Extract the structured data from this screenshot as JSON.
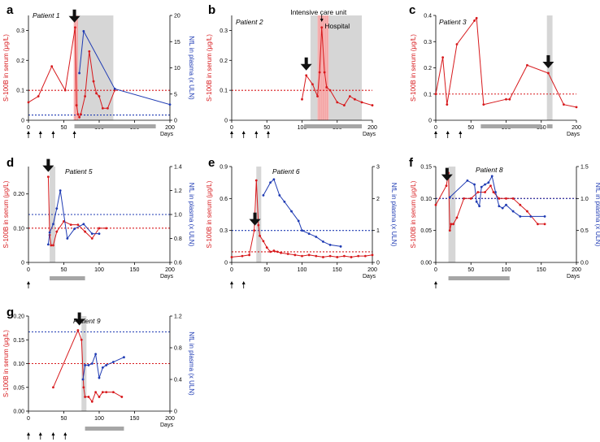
{
  "chart_data": [
    {
      "id": "a",
      "panel_label": "a",
      "patient": "Patient 1",
      "type": "line",
      "x_label": "Days",
      "y_label": "S-100B in serum (μg/L)",
      "y2_label": "NfL in plasma (x ULN)",
      "x_ticks": [
        0,
        50,
        100,
        150,
        200
      ],
      "y_ticks": [
        0,
        0.1,
        0.2,
        0.3
      ],
      "y_tick_labels": [
        "0",
        "0.1",
        "0.2",
        "0.3"
      ],
      "y2_ticks": [
        0,
        5,
        10,
        15,
        20
      ],
      "y2_tick_labels": [
        "0",
        "5",
        "10",
        "15",
        "20"
      ],
      "xlim": [
        0,
        200
      ],
      "ylim": [
        0,
        0.35
      ],
      "y2lim": [
        0,
        20
      ],
      "series": [
        {
          "name": "S-100B",
          "axis": "left",
          "color": "#d7191c",
          "x": [
            0,
            14,
            33,
            52,
            66,
            68,
            70,
            72,
            74,
            80,
            86,
            92,
            96,
            100,
            105,
            112,
            122
          ],
          "y": [
            0.06,
            0.08,
            0.18,
            0.1,
            0.31,
            0.05,
            0.02,
            0.01,
            0.02,
            0.08,
            0.23,
            0.13,
            0.09,
            0.08,
            0.04,
            0.04,
            0.1
          ]
        },
        {
          "name": "NfL",
          "axis": "right",
          "color": "#1f3bb3",
          "x": [
            72,
            78,
            122,
            200
          ],
          "y": [
            9,
            17,
            6,
            3
          ]
        }
      ],
      "ref_left": 0.1,
      "ref_right": 1,
      "shade": [
        [
          66,
          120
        ]
      ],
      "pink": [
        [
          64,
          70
        ]
      ],
      "bar": [
        [
          65,
          180
        ]
      ],
      "arrow_days": [
        65
      ],
      "tick_arrows": [
        0,
        17,
        35,
        65
      ]
    },
    {
      "id": "b",
      "panel_label": "b",
      "patient": "Patient 2",
      "type": "line",
      "x_label": "Days",
      "y_label": "S-100B in serum (μg/L)",
      "x_ticks": [
        0,
        50,
        100,
        150,
        200
      ],
      "y_ticks": [
        0,
        0.1,
        0.2,
        0.3
      ],
      "y_tick_labels": [
        "0",
        "0.1",
        "0.2",
        "0.3"
      ],
      "xlim": [
        0,
        200
      ],
      "ylim": [
        0,
        0.35
      ],
      "series": [
        {
          "name": "S-100B",
          "axis": "left",
          "color": "#d7191c",
          "x": [
            100,
            106,
            115,
            122,
            125,
            128,
            132,
            135,
            140,
            150,
            160,
            168,
            175,
            185,
            200
          ],
          "y": [
            0.07,
            0.15,
            0.12,
            0.08,
            0.16,
            0.31,
            0.16,
            0.11,
            0.1,
            0.06,
            0.05,
            0.08,
            0.07,
            0.06,
            0.05
          ]
        }
      ],
      "ref_left": 0.1,
      "shade": [
        [
          112,
          185
        ]
      ],
      "pink": [
        [
          122,
          138
        ]
      ],
      "bar": [
        [
          103,
          185
        ]
      ],
      "arrow_days": [
        106,
        128
      ],
      "tick_arrows": [
        0,
        17,
        35,
        52
      ],
      "annotations": [
        "Intensive care unit",
        "Hospital"
      ]
    },
    {
      "id": "c",
      "panel_label": "c",
      "patient": "Patient 3",
      "type": "line",
      "x_label": "Days",
      "y_label": "S-100B in serum (μg/L)",
      "x_ticks": [
        0,
        50,
        100,
        150,
        200
      ],
      "y_ticks": [
        0,
        0.1,
        0.2,
        0.3,
        0.4
      ],
      "y_tick_labels": [
        "0",
        "0.1",
        "0.2",
        "0.3",
        "0.4"
      ],
      "xlim": [
        0,
        200
      ],
      "ylim": [
        0,
        0.4
      ],
      "series": [
        {
          "name": "S-100B",
          "axis": "left",
          "color": "#d7191c",
          "x": [
            0,
            10,
            16,
            30,
            55,
            58,
            68,
            100,
            105,
            130,
            160,
            182,
            200
          ],
          "y": [
            0.1,
            0.24,
            0.06,
            0.29,
            0.38,
            0.39,
            0.06,
            0.08,
            0.08,
            0.21,
            0.18,
            0.06,
            0.05
          ]
        }
      ],
      "ref_left": 0.1,
      "shade": [
        [
          158,
          166
        ]
      ],
      "bar": [
        [
          64,
          150
        ],
        [
          158,
          166
        ]
      ],
      "arrow_days": [
        160
      ],
      "tick_arrows": [
        0,
        17,
        35
      ]
    },
    {
      "id": "d",
      "panel_label": "d",
      "patient": "Patient 5",
      "type": "line",
      "x_label": "Days",
      "y_label": "S-100B in serum (μg/L)",
      "y2_label": "NfL in plasma (x ULN)",
      "x_ticks": [
        0,
        50,
        100,
        150,
        200
      ],
      "y_ticks": [
        0,
        0.1,
        0.2
      ],
      "y_tick_labels": [
        "0",
        "0.10",
        "0.20"
      ],
      "y2_ticks": [
        0.6,
        0.8,
        1,
        1.2,
        1.4
      ],
      "y2_tick_labels": [
        "0.6",
        "0.8",
        "1.0",
        "1.2",
        "1.4"
      ],
      "xlim": [
        0,
        200
      ],
      "ylim": [
        0,
        0.28
      ],
      "y2lim": [
        0.6,
        1.4
      ],
      "series": [
        {
          "name": "S-100B",
          "axis": "left",
          "color": "#d7191c",
          "x": [
            28,
            30,
            32,
            35,
            40,
            50,
            60,
            70,
            80,
            90,
            100,
            110
          ],
          "y": [
            0.25,
            0.08,
            0.05,
            0.05,
            0.09,
            0.12,
            0.11,
            0.11,
            0.09,
            0.07,
            0.1,
            0.1
          ]
        },
        {
          "name": "NfL",
          "axis": "right",
          "color": "#1f3bb3",
          "x": [
            28,
            30,
            35,
            40,
            45,
            55,
            65,
            78,
            90,
            100
          ],
          "y": [
            0.75,
            0.85,
            0.92,
            1.05,
            1.2,
            0.8,
            0.88,
            0.92,
            0.84,
            0.84
          ]
        }
      ],
      "ref_left": 0.1,
      "ref_right": 1,
      "shade": [
        [
          30,
          38
        ]
      ],
      "bar": [
        [
          30,
          80
        ]
      ],
      "arrow_days": [
        28
      ],
      "tick_arrows": [
        0
      ]
    },
    {
      "id": "e",
      "panel_label": "e",
      "patient": "Patient 6",
      "type": "line",
      "x_label": "Days",
      "y_label": "S-100B in serum (μg/L)",
      "y2_label": "NfL in plasma (x ULN)",
      "x_ticks": [
        0,
        50,
        100,
        150,
        200
      ],
      "y_ticks": [
        0,
        0.3,
        0.6,
        0.9
      ],
      "y_tick_labels": [
        "0",
        "0.3",
        "0.6",
        "0.9"
      ],
      "y2_ticks": [
        0,
        1,
        2,
        3
      ],
      "y2_tick_labels": [
        "0",
        "1",
        "2",
        "3"
      ],
      "xlim": [
        0,
        200
      ],
      "ylim": [
        0,
        0.9
      ],
      "y2lim": [
        0,
        3
      ],
      "series": [
        {
          "name": "S-100B",
          "axis": "left",
          "color": "#d7191c",
          "x": [
            0,
            15,
            25,
            32,
            35,
            38,
            40,
            45,
            50,
            55,
            60,
            65,
            70,
            80,
            90,
            100,
            110,
            120,
            130,
            140,
            150,
            160,
            170,
            180,
            190,
            200
          ],
          "y": [
            0.05,
            0.06,
            0.07,
            0.3,
            0.77,
            0.35,
            0.25,
            0.2,
            0.14,
            0.1,
            0.11,
            0.1,
            0.09,
            0.08,
            0.07,
            0.06,
            0.07,
            0.06,
            0.05,
            0.06,
            0.05,
            0.06,
            0.05,
            0.06,
            0.06,
            0.07
          ]
        },
        {
          "name": "NfL",
          "axis": "right",
          "color": "#1f3bb3",
          "x": [
            45,
            55,
            60,
            68,
            75,
            85,
            95,
            100,
            110,
            120,
            130,
            140,
            155
          ],
          "y": [
            2.1,
            2.5,
            2.6,
            2.1,
            1.9,
            1.6,
            1.3,
            1.0,
            0.9,
            0.8,
            0.65,
            0.55,
            0.5
          ]
        }
      ],
      "ref_left": 0.1,
      "ref_right": 1,
      "shade": [
        [
          35,
          42
        ]
      ],
      "arrow_days": [
        33
      ],
      "tick_arrows": [
        0,
        17
      ]
    },
    {
      "id": "f",
      "panel_label": "f",
      "patient": "Patient 8",
      "type": "line",
      "x_label": "Days",
      "y_label": "S-100B in serum (μg/L)",
      "y2_label": "NfL in plasma (x ULN)",
      "x_ticks": [
        0,
        50,
        100,
        150,
        200
      ],
      "y_ticks": [
        0,
        0.05,
        0.1,
        0.15
      ],
      "y_tick_labels": [
        "0.00",
        "0.05",
        "0.10",
        "0.15"
      ],
      "y2_ticks": [
        0,
        0.5,
        1,
        1.5
      ],
      "y2_tick_labels": [
        "0.0",
        "0.5",
        "1.0",
        "1.5"
      ],
      "xlim": [
        0,
        200
      ],
      "ylim": [
        0,
        0.15
      ],
      "y2lim": [
        0,
        1.5
      ],
      "series": [
        {
          "name": "S-100B",
          "axis": "left",
          "color": "#d7191c",
          "x": [
            0,
            15,
            18,
            20,
            22,
            25,
            30,
            40,
            50,
            60,
            70,
            78,
            82,
            90,
            100,
            110,
            120,
            130,
            145,
            155
          ],
          "y": [
            0.09,
            0.12,
            0.14,
            0.05,
            0.06,
            0.06,
            0.07,
            0.1,
            0.1,
            0.11,
            0.11,
            0.12,
            0.11,
            0.1,
            0.1,
            0.1,
            0.09,
            0.08,
            0.06,
            0.06
          ]
        },
        {
          "name": "NfL",
          "axis": "right",
          "color": "#1f3bb3",
          "x": [
            20,
            45,
            55,
            58,
            62,
            65,
            70,
            75,
            80,
            85,
            90,
            95,
            100,
            110,
            120,
            135,
            155
          ],
          "y": [
            1.02,
            1.28,
            1.22,
            0.95,
            0.88,
            1.18,
            1.22,
            1.25,
            1.35,
            1.1,
            0.88,
            0.85,
            0.9,
            0.8,
            0.72,
            0.72,
            0.72
          ]
        }
      ],
      "ref_left": 0.1,
      "ref_right": 1,
      "shade": [
        [
          18,
          28
        ]
      ],
      "bar": [
        [
          18,
          105
        ]
      ],
      "arrow_days": [
        16
      ],
      "tick_arrows": [
        0
      ]
    },
    {
      "id": "g",
      "panel_label": "g",
      "patient": "Patient 9",
      "type": "line",
      "x_label": "Days",
      "y_label": "S-100B in serum (μg/L)",
      "y2_label": "NfL in plasma (x ULN)",
      "x_ticks": [
        0,
        50,
        100,
        150,
        200
      ],
      "y_ticks": [
        0,
        0.05,
        0.1,
        0.15,
        0.2
      ],
      "y_tick_labels": [
        "0.00",
        "0.05",
        "0.10",
        "0.15",
        "0.20"
      ],
      "y2_ticks": [
        0,
        0.4,
        0.8,
        1.2
      ],
      "y2_tick_labels": [
        "0",
        "0.4",
        "0.8",
        "1.2"
      ],
      "xlim": [
        0,
        200
      ],
      "ylim": [
        0,
        0.2
      ],
      "y2lim": [
        0,
        1.2
      ],
      "series": [
        {
          "name": "S-100B",
          "axis": "left",
          "color": "#d7191c",
          "x": [
            35,
            70,
            75,
            78,
            80,
            85,
            90,
            95,
            100,
            105,
            110,
            120,
            132
          ],
          "y": [
            0.05,
            0.17,
            0.15,
            0.05,
            0.03,
            0.03,
            0.02,
            0.04,
            0.03,
            0.04,
            0.04,
            0.04,
            0.03
          ]
        },
        {
          "name": "NfL",
          "axis": "right",
          "color": "#1f3bb3",
          "x": [
            77,
            80,
            85,
            90,
            95,
            100,
            105,
            110,
            120,
            135
          ],
          "y": [
            0.4,
            0.58,
            0.58,
            0.6,
            0.72,
            0.42,
            0.55,
            0.58,
            0.62,
            0.68
          ]
        }
      ],
      "ref_left": 0.1,
      "ref_right": 1,
      "shade": [
        [
          75,
          82
        ]
      ],
      "bar": [
        [
          80,
          135
        ]
      ],
      "arrow_days": [
        72
      ],
      "tick_arrows": [
        0,
        17,
        35,
        52
      ]
    }
  ]
}
